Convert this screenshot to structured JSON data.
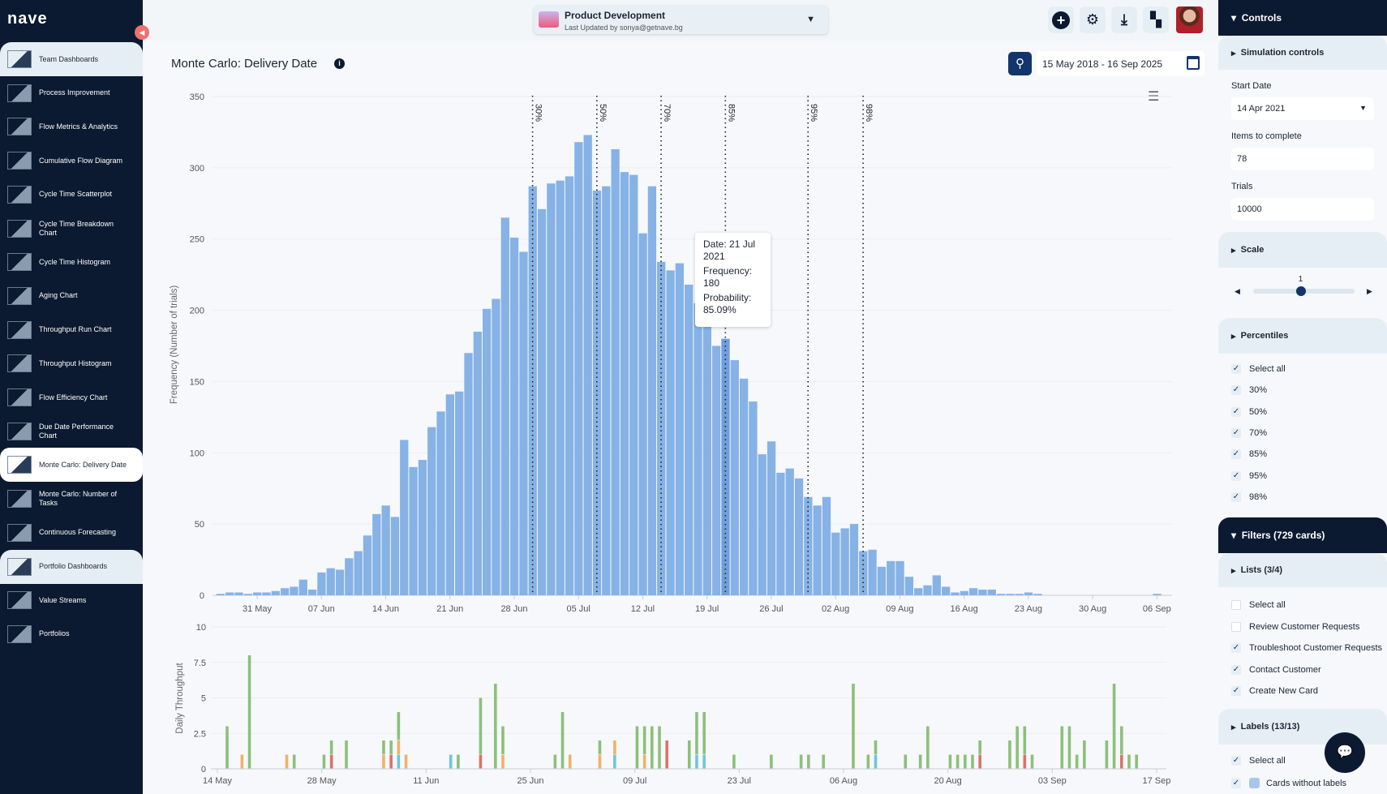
{
  "app": {
    "logo": "nave"
  },
  "sidebar": {
    "items": [
      {
        "label": "Team Dashboards",
        "kind": "section"
      },
      {
        "label": "Process Improvement"
      },
      {
        "label": "Flow Metrics & Analytics"
      },
      {
        "label": "Cumulative Flow Diagram"
      },
      {
        "label": "Cycle Time Scatterplot"
      },
      {
        "label": "Cycle Time Breakdown Chart"
      },
      {
        "label": "Cycle Time Histogram"
      },
      {
        "label": "Aging Chart"
      },
      {
        "label": "Throughput Run Chart"
      },
      {
        "label": "Throughput Histogram"
      },
      {
        "label": "Flow Efficiency Chart"
      },
      {
        "label": "Due Date Performance Chart"
      },
      {
        "label": "Monte Carlo: Delivery Date",
        "kind": "active"
      },
      {
        "label": "Monte Carlo: Number of Tasks"
      },
      {
        "label": "Continuous Forecasting"
      },
      {
        "label": "Portfolio Dashboards",
        "kind": "section"
      },
      {
        "label": "Value Streams"
      },
      {
        "label": "Portfolios"
      }
    ]
  },
  "header": {
    "project": "Product Development",
    "last_updated": "Last Updated by sonya@getnave.bg",
    "icons": [
      "plus-icon",
      "gear-icon",
      "download-icon",
      "dashboard-icon"
    ]
  },
  "page": {
    "title": "Monte Carlo: Delivery Date",
    "date_range": "15 May 2018 - 16 Sep 2025"
  },
  "tooltip": {
    "date": "Date: 21 Jul",
    "year": "2021",
    "freq_label": "Frequency:",
    "freq": "180",
    "prob_label": "Probability:",
    "prob": "85.09%"
  },
  "chart_data": [
    {
      "type": "bar",
      "title": "Monte Carlo: Delivery Date",
      "ylabel": "Frequency (Number of trials)",
      "ylim": [
        0,
        350
      ],
      "yticks": [
        "0",
        "50",
        "100",
        "150",
        "200",
        "250",
        "300",
        "350"
      ],
      "x_start": "27 May",
      "x_unit": "day",
      "values": [
        1,
        2,
        2,
        1,
        2,
        2,
        3,
        5,
        6,
        11,
        4,
        16,
        19,
        18,
        26,
        31,
        42,
        57,
        63,
        55,
        109,
        90,
        95,
        118,
        129,
        141,
        143,
        170,
        185,
        201,
        208,
        265,
        251,
        241,
        287,
        271,
        289,
        291,
        294,
        318,
        323,
        284,
        287,
        313,
        297,
        295,
        254,
        287,
        234,
        228,
        233,
        218,
        205,
        196,
        175,
        180,
        165,
        152,
        136,
        99,
        108,
        86,
        89,
        82,
        69,
        63,
        69,
        44,
        47,
        50,
        31,
        32,
        20,
        24,
        24,
        13,
        5,
        7,
        14,
        6,
        2,
        3,
        5,
        4,
        4,
        1,
        1,
        1,
        2,
        1,
        0,
        0,
        0,
        0,
        0,
        0,
        0,
        0,
        0,
        0,
        0,
        0,
        1
      ],
      "xticks": [
        {
          "x": 4,
          "label": "31 May"
        },
        {
          "x": 11,
          "label": "07 Jun"
        },
        {
          "x": 18,
          "label": "14 Jun"
        },
        {
          "x": 25,
          "label": "21 Jun"
        },
        {
          "x": 32,
          "label": "28 Jun"
        },
        {
          "x": 39,
          "label": "05 Jul"
        },
        {
          "x": 46,
          "label": "12 Jul"
        },
        {
          "x": 53,
          "label": "19 Jul"
        },
        {
          "x": 60,
          "label": "26 Jul"
        },
        {
          "x": 67,
          "label": "02 Aug"
        },
        {
          "x": 74,
          "label": "09 Aug"
        },
        {
          "x": 81,
          "label": "16 Aug"
        },
        {
          "x": 88,
          "label": "23 Aug"
        },
        {
          "x": 95,
          "label": "30 Aug"
        },
        {
          "x": 102,
          "label": "06 Sep"
        }
      ],
      "percentiles": [
        {
          "x": 34,
          "label": "30%"
        },
        {
          "x": 41,
          "label": "50%"
        },
        {
          "x": 48,
          "label": "70%"
        },
        {
          "x": 55,
          "label": "85%"
        },
        {
          "x": 64,
          "label": "95%"
        },
        {
          "x": 70,
          "label": "98%"
        }
      ],
      "highlight_x": 55,
      "color": "#86b2e6"
    },
    {
      "type": "bar",
      "stacked": true,
      "ylabel": "Daily Throughput",
      "ylim": [
        0,
        10
      ],
      "yticks": [
        "0",
        "2.5",
        "5",
        "7.5",
        "10"
      ],
      "x_start": "14 May",
      "colors": {
        "b": "#6ec6dc",
        "r": "#d9736a",
        "o": "#f0b266",
        "g": "#8cc07a"
      },
      "xticks": [
        {
          "x": 0,
          "label": "14 May"
        },
        {
          "x": 14,
          "label": "28 May"
        },
        {
          "x": 28,
          "label": "11 Jun"
        },
        {
          "x": 42,
          "label": "25 Jun"
        },
        {
          "x": 56,
          "label": "09 Jul"
        },
        {
          "x": 70,
          "label": "23 Jul"
        },
        {
          "x": 84,
          "label": "06 Aug"
        },
        {
          "x": 98,
          "label": "20 Aug"
        },
        {
          "x": 112,
          "label": "03 Sep"
        },
        {
          "x": 126,
          "label": "17 Sep"
        }
      ],
      "bars": [
        {
          "x": 1,
          "g": 3
        },
        {
          "x": 3,
          "o": 1
        },
        {
          "x": 4,
          "g": 8
        },
        {
          "x": 9,
          "o": 1
        },
        {
          "x": 10,
          "g": 1
        },
        {
          "x": 14,
          "g": 1
        },
        {
          "x": 15,
          "r": 1,
          "g": 1
        },
        {
          "x": 17,
          "g": 2
        },
        {
          "x": 22,
          "o": 1,
          "g": 1
        },
        {
          "x": 23,
          "r": 1,
          "g": 1
        },
        {
          "x": 24,
          "b": 1,
          "o": 1,
          "g": 2
        },
        {
          "x": 25,
          "o": 1
        },
        {
          "x": 31,
          "b": 1
        },
        {
          "x": 32,
          "g": 1
        },
        {
          "x": 35,
          "r": 1,
          "g": 4
        },
        {
          "x": 37,
          "g": 6
        },
        {
          "x": 38,
          "o": 1,
          "g": 2
        },
        {
          "x": 45,
          "g": 1
        },
        {
          "x": 46,
          "g": 4
        },
        {
          "x": 47,
          "o": 1
        },
        {
          "x": 51,
          "o": 1,
          "g": 1
        },
        {
          "x": 53,
          "b": 1,
          "o": 1
        },
        {
          "x": 56,
          "g": 3
        },
        {
          "x": 57,
          "o": 1,
          "g": 2
        },
        {
          "x": 58,
          "g": 3
        },
        {
          "x": 59,
          "g": 3
        },
        {
          "x": 60,
          "r": 2
        },
        {
          "x": 63,
          "g": 2
        },
        {
          "x": 64,
          "b": 1,
          "g": 3
        },
        {
          "x": 65,
          "b": 1,
          "g": 3
        },
        {
          "x": 69,
          "g": 1
        },
        {
          "x": 74,
          "g": 1
        },
        {
          "x": 78,
          "g": 1
        },
        {
          "x": 79,
          "g": 1
        },
        {
          "x": 81,
          "g": 1
        },
        {
          "x": 85,
          "g": 6
        },
        {
          "x": 87,
          "g": 1
        },
        {
          "x": 88,
          "b": 1,
          "g": 1
        },
        {
          "x": 92,
          "g": 1
        },
        {
          "x": 94,
          "g": 1
        },
        {
          "x": 95,
          "g": 3
        },
        {
          "x": 98,
          "g": 1
        },
        {
          "x": 99,
          "g": 1
        },
        {
          "x": 100,
          "g": 1
        },
        {
          "x": 101,
          "g": 1
        },
        {
          "x": 102,
          "r": 1,
          "g": 1
        },
        {
          "x": 106,
          "g": 2
        },
        {
          "x": 107,
          "g": 3
        },
        {
          "x": 108,
          "r": 1,
          "g": 2
        },
        {
          "x": 109,
          "g": 1
        },
        {
          "x": 113,
          "g": 3
        },
        {
          "x": 114,
          "g": 3
        },
        {
          "x": 115,
          "g": 1
        },
        {
          "x": 116,
          "g": 2
        },
        {
          "x": 119,
          "g": 2
        },
        {
          "x": 120,
          "g": 6
        },
        {
          "x": 121,
          "r": 1,
          "g": 2
        },
        {
          "x": 122,
          "g": 1
        },
        {
          "x": 123,
          "g": 1
        }
      ]
    }
  ],
  "controls": {
    "title": "Controls",
    "simulation": {
      "title": "Simulation controls",
      "start_label": "Start Date",
      "start_value": "14 Apr 2021",
      "items_label": "Items to complete",
      "items_value": "78",
      "trials_label": "Trials",
      "trials_value": "10000"
    },
    "scale": {
      "title": "Scale",
      "value": "1",
      "fraction": 0.47
    },
    "percentiles": {
      "title": "Percentiles",
      "items": [
        {
          "label": "Select all",
          "checked": true
        },
        {
          "label": "30%",
          "checked": true
        },
        {
          "label": "50%",
          "checked": true
        },
        {
          "label": "70%",
          "checked": true
        },
        {
          "label": "85%",
          "checked": true
        },
        {
          "label": "95%",
          "checked": true
        },
        {
          "label": "98%",
          "checked": true
        }
      ]
    },
    "filters": {
      "title": "Filters (729 cards)",
      "lists": {
        "title": "Lists  (3/4)",
        "items": [
          {
            "label": "Select all",
            "checked": false
          },
          {
            "label": "Review Customer Requests",
            "checked": false
          },
          {
            "label": "Troubleshoot Customer Requests",
            "checked": true
          },
          {
            "label": "Contact Customer",
            "checked": true
          },
          {
            "label": "Create New Card",
            "checked": true
          }
        ]
      },
      "labels": {
        "title": "Labels  (13/13)",
        "items": [
          {
            "label": "Select all",
            "checked": true
          },
          {
            "label": "Cards without labels",
            "checked": true
          }
        ]
      }
    }
  }
}
